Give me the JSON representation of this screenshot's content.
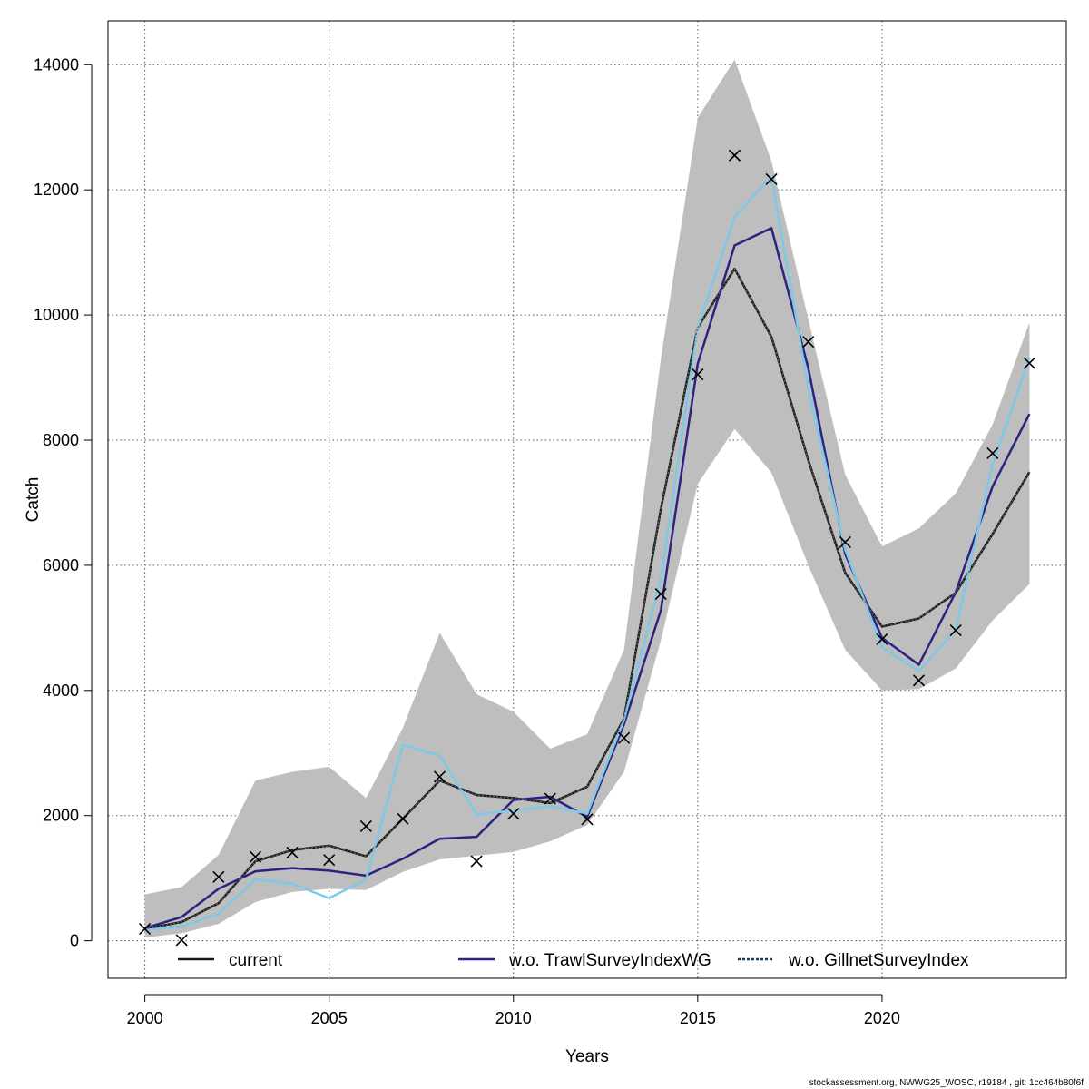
{
  "chart_data": {
    "type": "line",
    "xlabel": "Years",
    "ylabel": "Catch",
    "xlim": [
      1999,
      2025
    ],
    "ylim": [
      -600,
      14700
    ],
    "x_ticks": [
      2000,
      2005,
      2010,
      2015,
      2020
    ],
    "y_ticks": [
      0,
      2000,
      4000,
      6000,
      8000,
      10000,
      12000,
      14000
    ],
    "grid": true,
    "legend_position": "bottom",
    "x": [
      2000,
      2001,
      2002,
      2003,
      2004,
      2005,
      2006,
      2007,
      2008,
      2009,
      2010,
      2011,
      2012,
      2013,
      2014,
      2015,
      2016,
      2017,
      2018,
      2019,
      2020,
      2021,
      2022,
      2023,
      2024
    ],
    "confidence_band": {
      "lower": [
        50,
        120,
        270,
        620,
        780,
        830,
        810,
        1100,
        1300,
        1360,
        1420,
        1590,
        1850,
        2700,
        4800,
        7300,
        8180,
        7480,
        6000,
        4650,
        4000,
        4020,
        4350,
        5120,
        5700
      ],
      "upper": [
        740,
        860,
        1370,
        2560,
        2700,
        2780,
        2280,
        3400,
        4920,
        3940,
        3660,
        3070,
        3300,
        4650,
        9300,
        13150,
        14080,
        12460,
        9930,
        7450,
        6300,
        6590,
        7150,
        8250,
        9880
      ]
    },
    "series": [
      {
        "name": "current",
        "color": "#1a1a1a",
        "dash": "solid",
        "values": [
          190,
          300,
          600,
          1270,
          1450,
          1520,
          1350,
          1950,
          2560,
          2330,
          2280,
          2200,
          2460,
          3550,
          6900,
          9800,
          10740,
          9650,
          7680,
          5880,
          5020,
          5150,
          5560,
          6500,
          7490
        ]
      },
      {
        "name": "w.o. TrawlSurveyIndexWG",
        "color": "#2b2284",
        "dash": "solid",
        "values": [
          200,
          380,
          830,
          1110,
          1160,
          1120,
          1040,
          1310,
          1630,
          1660,
          2250,
          2300,
          1980,
          3460,
          5280,
          9220,
          11110,
          11390,
          9150,
          6180,
          4840,
          4410,
          5570,
          7260,
          8420
        ]
      },
      {
        "name": "w.o. GillnetSurveyIndex",
        "color": "#7ec8e8",
        "dash": "dotted",
        "values": [
          170,
          230,
          430,
          980,
          910,
          680,
          980,
          3130,
          2960,
          2020,
          2080,
          2150,
          2030,
          3530,
          5780,
          9800,
          11570,
          12210,
          8830,
          6250,
          4690,
          4310,
          4970,
          7620,
          9310
        ]
      }
    ],
    "observations": {
      "marker": "x-cross",
      "x": [
        2000,
        2001,
        2002,
        2003,
        2004,
        2005,
        2006,
        2007,
        2008,
        2009,
        2010,
        2011,
        2012,
        2013,
        2014,
        2015,
        2016,
        2017,
        2018,
        2019,
        2020,
        2021,
        2022,
        2023,
        2024
      ],
      "y": [
        190,
        10,
        1020,
        1340,
        1410,
        1290,
        1830,
        1950,
        2620,
        1270,
        2030,
        2270,
        1940,
        3240,
        5540,
        9050,
        12550,
        12170,
        9570,
        6370,
        4820,
        4160,
        4960,
        7790,
        9230
      ]
    }
  },
  "footer": {
    "note": "stockassessment.org, NWWG25_WOSC, r19184 , git: 1cc464b80f6f"
  },
  "colors": {
    "band_fill": "#bebebe",
    "grid": "#555555",
    "axis": "#000000"
  }
}
